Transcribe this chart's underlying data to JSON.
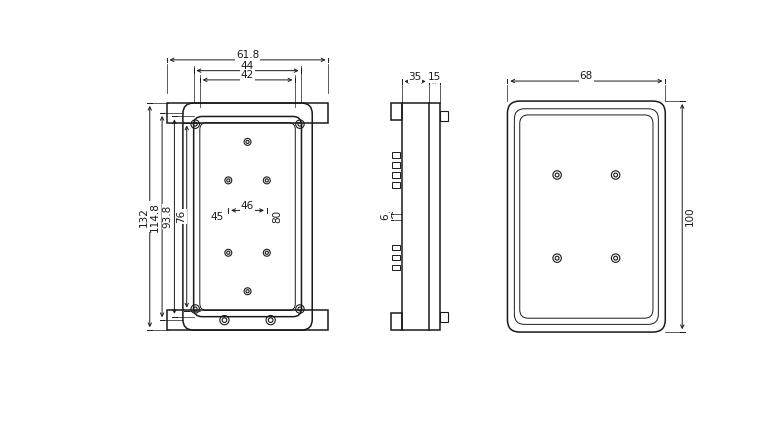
{
  "bg_color": "#ffffff",
  "line_color": "#1a1a1a",
  "font_size": 7.5,
  "fig_width": 7.64,
  "fig_height": 4.38,
  "dpi": 100
}
